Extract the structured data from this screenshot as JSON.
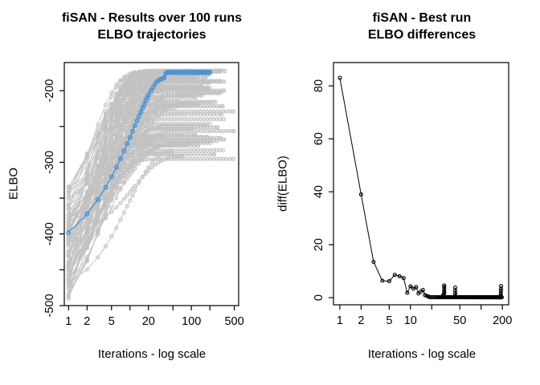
{
  "figure_bg": "#ffffff",
  "chart_data": [
    {
      "type": "line",
      "title_line1": "fiSAN - Results over 100 runs",
      "title_line2": "ELBO trajectories",
      "xlabel": "Iterations - log scale",
      "ylabel": "ELBO",
      "xscale": "log",
      "xlim": [
        1,
        500
      ],
      "ylim": [
        -500,
        -161
      ],
      "grid": false,
      "xticks": [
        {
          "v": 1,
          "label": "1"
        },
        {
          "v": 2,
          "label": "2"
        },
        {
          "v": 5,
          "label": "5"
        },
        {
          "v": 10,
          "label": ""
        },
        {
          "v": 20,
          "label": "20"
        },
        {
          "v": 50,
          "label": ""
        },
        {
          "v": 100,
          "label": "100"
        },
        {
          "v": 200,
          "label": ""
        },
        {
          "v": 500,
          "label": "500"
        }
      ],
      "yticks": [
        {
          "v": -200,
          "label": "-200"
        },
        {
          "v": -250,
          "label": ""
        },
        {
          "v": -300,
          "label": "-300"
        },
        {
          "v": -350,
          "label": ""
        },
        {
          "v": -400,
          "label": "-400"
        },
        {
          "v": -450,
          "label": ""
        },
        {
          "v": -500,
          "label": "-500"
        }
      ],
      "colors": {
        "runs": "#c2c2c2",
        "best_run": "#4f94d0"
      },
      "best_run": {
        "points": [
          [
            1,
            -398
          ],
          [
            2,
            -372
          ],
          [
            3,
            -352
          ],
          [
            4,
            -335
          ],
          [
            5,
            -320
          ],
          [
            6,
            -307
          ],
          [
            7,
            -295
          ],
          [
            8,
            -284
          ],
          [
            9,
            -274
          ],
          [
            10,
            -265
          ],
          [
            11,
            -257
          ],
          [
            12,
            -249
          ],
          [
            13,
            -242
          ],
          [
            14,
            -236
          ],
          [
            15,
            -230
          ],
          [
            16,
            -224
          ],
          [
            17,
            -219
          ],
          [
            18,
            -214
          ],
          [
            19,
            -210
          ],
          [
            20,
            -206
          ],
          [
            22,
            -200
          ],
          [
            24,
            -195
          ],
          [
            26,
            -190
          ],
          [
            28,
            -187
          ],
          [
            30,
            -185
          ],
          [
            32,
            -184
          ],
          [
            34,
            -183
          ],
          [
            36,
            -182
          ],
          [
            38,
            -176
          ],
          [
            40,
            -175
          ]
        ],
        "plateau": {
          "from": 41,
          "to": 200,
          "value": -174.5
        }
      },
      "runs_sim": {
        "count": 100,
        "seed": 42,
        "start_range": [
          -492,
          -333
        ],
        "plateau_range": [
          -297,
          -172
        ],
        "rate_range": [
          0.08,
          0.48
        ],
        "end_range": [
          20,
          500
        ]
      }
    },
    {
      "type": "scatter",
      "title_line1": "fiSAN - Best run",
      "title_line2": "ELBO differences",
      "xlabel": "Iterations - log scale",
      "ylabel": "diff(ELBO)",
      "xscale": "log",
      "xlim": [
        1,
        200
      ],
      "ylim": [
        0,
        88
      ],
      "grid": false,
      "xticks": [
        {
          "v": 1,
          "label": "1"
        },
        {
          "v": 2,
          "label": "2"
        },
        {
          "v": 5,
          "label": "5"
        },
        {
          "v": 10,
          "label": "10"
        },
        {
          "v": 20,
          "label": ""
        },
        {
          "v": 50,
          "label": "50"
        },
        {
          "v": 100,
          "label": ""
        },
        {
          "v": 200,
          "label": "200"
        }
      ],
      "yticks": [
        {
          "v": 0,
          "label": "0"
        },
        {
          "v": 20,
          "label": "20"
        },
        {
          "v": 40,
          "label": "40"
        },
        {
          "v": 60,
          "label": "60"
        },
        {
          "v": 80,
          "label": "80"
        }
      ],
      "color": "#000000",
      "points": [
        [
          1,
          83
        ],
        [
          2,
          39
        ],
        [
          3,
          13.5
        ],
        [
          4,
          6.4
        ],
        [
          5,
          6.2
        ],
        [
          6,
          8.6
        ],
        [
          7,
          8.1
        ],
        [
          8,
          7.4
        ],
        [
          9,
          1.8
        ],
        [
          10,
          4.3
        ],
        [
          11,
          3.4
        ],
        [
          12,
          4.0
        ],
        [
          13,
          1.6
        ],
        [
          14,
          2.3
        ],
        [
          15,
          2.9
        ],
        [
          16,
          1.0
        ],
        [
          17,
          0.6
        ],
        [
          18,
          0.4
        ]
      ],
      "dense_tail": {
        "from": 19,
        "to": 196,
        "value": 0.15
      },
      "extra_points": [
        [
          29,
          0.5
        ],
        [
          29,
          1.0
        ],
        [
          30,
          1.6
        ],
        [
          30,
          2.3
        ],
        [
          30,
          3.1
        ],
        [
          30,
          4.0
        ],
        [
          30,
          4.6
        ],
        [
          43,
          0.8
        ],
        [
          43,
          1.7
        ],
        [
          43,
          2.7
        ],
        [
          43,
          3.8
        ],
        [
          190,
          0.8
        ],
        [
          190,
          1.6
        ],
        [
          191,
          2.5
        ],
        [
          191,
          3.4
        ],
        [
          192,
          4.4
        ]
      ]
    }
  ]
}
